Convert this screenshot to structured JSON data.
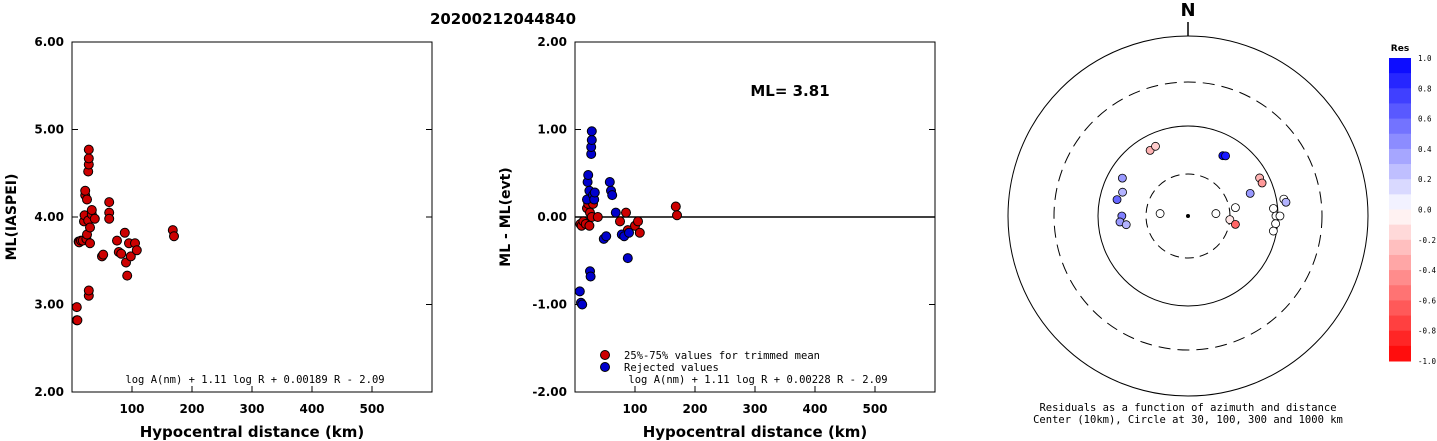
{
  "title": "20200212044840",
  "colors": {
    "accepted": "#cc0000",
    "rejected": "#0000cc",
    "outline": "#000000"
  },
  "chart_data": [
    {
      "type": "scatter",
      "ylabel": "ML(IASPEI)",
      "xlabel": "Hypocentral distance (km)",
      "xlim": [
        0,
        600
      ],
      "ylim": [
        2.0,
        6.0
      ],
      "xticks": [
        100,
        200,
        300,
        400,
        500
      ],
      "yticks": [
        "2.00",
        "3.00",
        "4.00",
        "5.00",
        "6.00"
      ],
      "formula": "log A(nm) + 1.11 log R + 0.00189 R - 2.09",
      "series": [
        {
          "points": [
            [
              8,
              2.97
            ],
            [
              8,
              2.82
            ],
            [
              9,
              2.82
            ],
            [
              11,
              3.72
            ],
            [
              12,
              3.71
            ],
            [
              15,
              3.73
            ],
            [
              18,
              3.73
            ],
            [
              20,
              3.95
            ],
            [
              21,
              4.02
            ],
            [
              22,
              4.25
            ],
            [
              22,
              4.3
            ],
            [
              24,
              3.75
            ],
            [
              25,
              3.8
            ],
            [
              25,
              4.2
            ],
            [
              27,
              3.96
            ],
            [
              27,
              4.52
            ],
            [
              28,
              4.6
            ],
            [
              28,
              4.67
            ],
            [
              28,
              4.77
            ],
            [
              28,
              3.1
            ],
            [
              28,
              3.16
            ],
            [
              30,
              3.88
            ],
            [
              30,
              3.7
            ],
            [
              33,
              4.03
            ],
            [
              33,
              4.08
            ],
            [
              38,
              3.98
            ],
            [
              50,
              3.55
            ],
            [
              52,
              3.57
            ],
            [
              62,
              4.17
            ],
            [
              62,
              4.05
            ],
            [
              62,
              3.98
            ],
            [
              75,
              3.73
            ],
            [
              78,
              3.6
            ],
            [
              82,
              3.58
            ],
            [
              88,
              3.82
            ],
            [
              90,
              3.48
            ],
            [
              92,
              3.33
            ],
            [
              95,
              3.7
            ],
            [
              98,
              3.55
            ],
            [
              105,
              3.7
            ],
            [
              108,
              3.62
            ],
            [
              168,
              3.85
            ],
            [
              170,
              3.78
            ]
          ]
        }
      ]
    },
    {
      "type": "scatter",
      "ylabel": "ML - ML(evt)",
      "xlabel": "Hypocentral distance (km)",
      "xlim": [
        0,
        600
      ],
      "ylim": [
        -2.0,
        2.0
      ],
      "xticks": [
        100,
        200,
        300,
        400,
        500
      ],
      "yticks": [
        "-2.00",
        "-1.00",
        "0.00",
        "1.00",
        "2.00"
      ],
      "reference_line": 0,
      "annotation": "ML= 3.81",
      "formula": "log A(nm) + 1.11 log R + 0.00228 R - 2.09",
      "series": [
        {
          "name": "25%-75% values for trimmed mean",
          "points": [
            [
              9,
              -0.08
            ],
            [
              11,
              -0.1
            ],
            [
              14,
              -0.05
            ],
            [
              18,
              -0.08
            ],
            [
              20,
              0.1
            ],
            [
              22,
              0.15
            ],
            [
              24,
              -0.1
            ],
            [
              25,
              0.05
            ],
            [
              28,
              0.0
            ],
            [
              30,
              0.15
            ],
            [
              38,
              0.0
            ],
            [
              75,
              -0.05
            ],
            [
              85,
              0.05
            ],
            [
              88,
              -0.15
            ],
            [
              100,
              -0.1
            ],
            [
              105,
              -0.05
            ],
            [
              108,
              -0.18
            ],
            [
              168,
              0.12
            ],
            [
              170,
              0.02
            ]
          ]
        },
        {
          "name": "Rejected values",
          "points": [
            [
              8,
              -0.85
            ],
            [
              10,
              -0.98
            ],
            [
              12,
              -1.0
            ],
            [
              20,
              0.2
            ],
            [
              21,
              0.4
            ],
            [
              22,
              0.48
            ],
            [
              24,
              0.3
            ],
            [
              25,
              -0.62
            ],
            [
              26,
              -0.68
            ],
            [
              27,
              0.72
            ],
            [
              27,
              0.8
            ],
            [
              28,
              0.88
            ],
            [
              28,
              0.98
            ],
            [
              30,
              0.25
            ],
            [
              32,
              0.2
            ],
            [
              33,
              0.28
            ],
            [
              48,
              -0.25
            ],
            [
              52,
              -0.22
            ],
            [
              58,
              0.4
            ],
            [
              60,
              0.3
            ],
            [
              62,
              0.25
            ],
            [
              68,
              0.05
            ],
            [
              78,
              -0.2
            ],
            [
              82,
              -0.22
            ],
            [
              88,
              -0.47
            ],
            [
              90,
              -0.18
            ]
          ]
        }
      ]
    },
    {
      "type": "scatter",
      "subtype": "polar-residuals",
      "north_label": "N",
      "caption_line1": "Residuals as a function of azimuth and distance",
      "caption_line2": "Center (10km), Circle at 30, 100, 300 and 1000 km",
      "rings_km": [
        30,
        100,
        300,
        1000
      ],
      "colorbar": {
        "title": "Res",
        "ticks": [
          "1.0",
          "0.8",
          "0.6",
          "0.4",
          "0.2",
          "0.0",
          "-0.2",
          "-0.4",
          "-0.6",
          "-0.8",
          "-1.0"
        ]
      },
      "stations": [
        {
          "azimuth": 283,
          "distance_km": 65,
          "residual": 0.6
        },
        {
          "azimuth": 290,
          "distance_km": 60,
          "residual": 0.3
        },
        {
          "azimuth": 270,
          "distance_km": 55,
          "residual": 0.5
        },
        {
          "azimuth": 265,
          "distance_km": 58,
          "residual": 0.4
        },
        {
          "azimuth": 262,
          "distance_km": 50,
          "residual": 0.3
        },
        {
          "azimuth": 300,
          "distance_km": 70,
          "residual": 0.4
        },
        {
          "azimuth": 330,
          "distance_km": 70,
          "residual": -0.3
        },
        {
          "azimuth": 335,
          "distance_km": 72,
          "residual": -0.2
        },
        {
          "azimuth": 30,
          "distance_km": 60,
          "residual": 1.0
        },
        {
          "azimuth": 32,
          "distance_km": 62,
          "residual": 0.9
        },
        {
          "azimuth": 275,
          "distance_km": 20,
          "residual": 0.0
        },
        {
          "azimuth": 85,
          "distance_km": 20,
          "residual": 0.0
        },
        {
          "azimuth": 95,
          "distance_km": 30,
          "residual": -0.1
        },
        {
          "azimuth": 100,
          "distance_km": 35,
          "residual": -0.6
        },
        {
          "azimuth": 80,
          "distance_km": 35,
          "residual": 0.0
        },
        {
          "azimuth": 70,
          "distance_km": 55,
          "residual": 0.4
        },
        {
          "azimuth": 62,
          "distance_km": 80,
          "residual": -0.3
        },
        {
          "azimuth": 66,
          "distance_km": 80,
          "residual": -0.4
        },
        {
          "azimuth": 85,
          "distance_km": 90,
          "residual": 0.0
        },
        {
          "azimuth": 90,
          "distance_km": 95,
          "residual": 0.0
        },
        {
          "azimuth": 95,
          "distance_km": 95,
          "residual": 0.0
        },
        {
          "azimuth": 100,
          "distance_km": 92,
          "residual": 0.0
        },
        {
          "azimuth": 80,
          "distance_km": 120,
          "residual": 0.0
        },
        {
          "azimuth": 82,
          "distance_km": 125,
          "residual": 0.3
        },
        {
          "azimuth": 90,
          "distance_km": 105,
          "residual": 0.0
        }
      ]
    }
  ]
}
